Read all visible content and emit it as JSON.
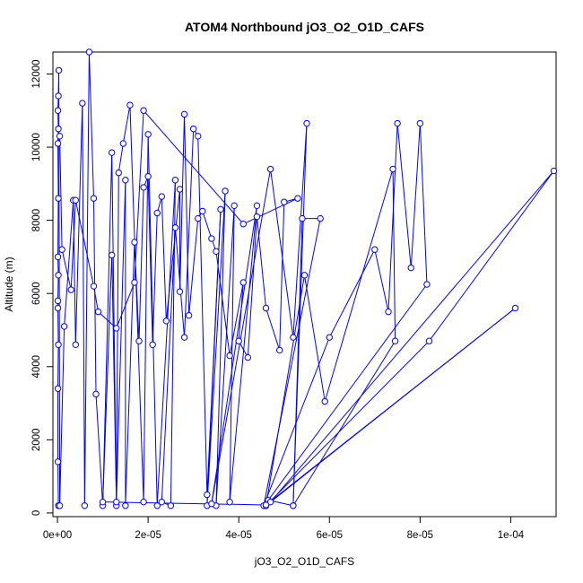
{
  "chart_data": {
    "type": "scatter",
    "title": "ATOM4 Northbound jO3_O2_O1D_CAFS",
    "xlabel": "jO3_O2_O1D_CAFS",
    "ylabel": "Altitude (m)",
    "xlim": [
      -1e-06,
      0.00011
    ],
    "ylim": [
      -100,
      12600
    ],
    "x_ticks": [
      0,
      2e-05,
      4e-05,
      6e-05,
      8e-05,
      0.0001
    ],
    "x_tick_labels": [
      "0e+00",
      "2e-05",
      "4e-05",
      "6e-05",
      "8e-05",
      "1e-04"
    ],
    "y_ticks": [
      0,
      2000,
      4000,
      6000,
      8000,
      10000,
      12000
    ],
    "y_tick_labels": [
      "0",
      "2000",
      "4000",
      "6000",
      "8000",
      "10000",
      "12000"
    ],
    "grid": false,
    "legend": "none",
    "series_color": "#0000ff",
    "series": [
      {
        "style": "line+open-circle",
        "points": [
          [
            2e-07,
            200
          ],
          [
            1e-07,
            1400
          ],
          [
            1e-07,
            3400
          ],
          [
            2e-07,
            4600
          ],
          [
            1e-07,
            5600
          ],
          [
            1e-07,
            5800
          ],
          [
            2e-07,
            6500
          ],
          [
            1e-07,
            7000
          ],
          [
            2e-07,
            8600
          ],
          [
            1e-07,
            10100
          ],
          [
            2e-07,
            10500
          ],
          [
            1e-07,
            11000
          ],
          [
            2e-07,
            11400
          ],
          [
            3e-07,
            12100
          ],
          [
            5e-07,
            200
          ],
          [
            1.5e-06,
            5100
          ],
          [
            3.5e-06,
            8550
          ],
          [
            4e-06,
            4600
          ],
          [
            5.5e-06,
            11200
          ],
          [
            6e-06,
            200
          ],
          [
            7e-06,
            12600
          ],
          [
            8e-06,
            8600
          ],
          [
            8.5e-06,
            3250
          ],
          [
            1e-05,
            200
          ],
          [
            1.2e-05,
            9850
          ],
          [
            1.3e-05,
            200
          ],
          [
            1.35e-05,
            9300
          ],
          [
            1.45e-05,
            10100
          ],
          [
            1.6e-05,
            11150
          ],
          [
            1.9e-05,
            300
          ],
          [
            2e-05,
            10350
          ],
          [
            2.2e-05,
            200
          ],
          [
            2.6e-05,
            9100
          ],
          [
            2.5e-05,
            200
          ],
          [
            2.3e-05,
            300
          ],
          [
            2.6e-05,
            7800
          ],
          [
            2.8e-05,
            4800
          ],
          [
            3e-05,
            10500
          ],
          [
            3.1e-05,
            10300
          ],
          [
            3.3e-05,
            500
          ],
          [
            3.6e-05,
            8300
          ],
          [
            3.3e-05,
            200
          ],
          [
            3.7e-05,
            8800
          ],
          [
            3.5e-05,
            200
          ],
          [
            3.9e-05,
            8400
          ],
          [
            3.8e-05,
            300
          ],
          [
            4.4e-05,
            8400
          ],
          [
            3.4e-05,
            250
          ],
          [
            4.7e-05,
            9400
          ],
          [
            5.2e-05,
            4800
          ],
          [
            5.5e-05,
            10650
          ],
          [
            5.2e-05,
            200
          ],
          [
            5.4e-05,
            8050
          ],
          [
            5.8e-05,
            8050
          ],
          [
            4.55e-05,
            200
          ],
          [
            6e-05,
            4800
          ],
          [
            7e-05,
            7200
          ],
          [
            7.3e-05,
            5500
          ],
          [
            7.5e-05,
            10650
          ],
          [
            7.8e-05,
            6700
          ],
          [
            8e-05,
            10650
          ],
          [
            8.15e-05,
            6250
          ],
          [
            4.65e-05,
            350
          ],
          [
            5.2e-05,
            200
          ],
          [
            7.45e-05,
            4700
          ],
          [
            7.4e-05,
            9400
          ],
          [
            5.9e-05,
            3050
          ],
          [
            5.45e-05,
            6500
          ],
          [
            4.6e-05,
            200
          ],
          [
            8.2e-05,
            4700
          ],
          [
            0.0001095,
            9350
          ],
          [
            4.7e-05,
            300
          ],
          [
            0.000101,
            5600
          ],
          [
            4.6e-05,
            220
          ],
          [
            1e-05,
            300
          ],
          [
            1.2e-05,
            7050
          ],
          [
            1.3e-05,
            300
          ],
          [
            1.5e-05,
            9100
          ],
          [
            1.5e-05,
            200
          ],
          [
            1.7e-05,
            7400
          ],
          [
            1.8e-05,
            4700
          ],
          [
            1.9e-05,
            8900
          ],
          [
            2e-05,
            9200
          ],
          [
            2.1e-05,
            4600
          ],
          [
            2.2e-05,
            8200
          ],
          [
            2.3e-05,
            8650
          ],
          [
            2.4e-05,
            5250
          ],
          [
            2.7e-05,
            8850
          ],
          [
            2.7e-05,
            6050
          ],
          [
            2.8e-05,
            10900
          ],
          [
            2.9e-05,
            5400
          ],
          [
            3.1e-05,
            8050
          ],
          [
            3.2e-05,
            8250
          ],
          [
            3.4e-05,
            7500
          ],
          [
            3.5e-05,
            7150
          ],
          [
            3.8e-05,
            4300
          ],
          [
            4.1e-05,
            6300
          ],
          [
            4e-05,
            4700
          ],
          [
            4.2e-05,
            4250
          ],
          [
            4.4e-05,
            8100
          ],
          [
            4.6e-05,
            5600
          ],
          [
            4.9e-05,
            4450
          ],
          [
            5e-05,
            8500
          ],
          [
            5.3e-05,
            8600
          ],
          [
            4.1e-05,
            7900
          ],
          [
            1.9e-05,
            11000
          ],
          [
            1.7e-05,
            6300
          ],
          [
            1.3e-05,
            5050
          ],
          [
            9e-06,
            5500
          ],
          [
            8e-06,
            6200
          ],
          [
            4e-06,
            8550
          ],
          [
            3e-06,
            6100
          ],
          [
            1e-06,
            7200
          ],
          [
            5e-07,
            10300
          ]
        ]
      }
    ]
  }
}
